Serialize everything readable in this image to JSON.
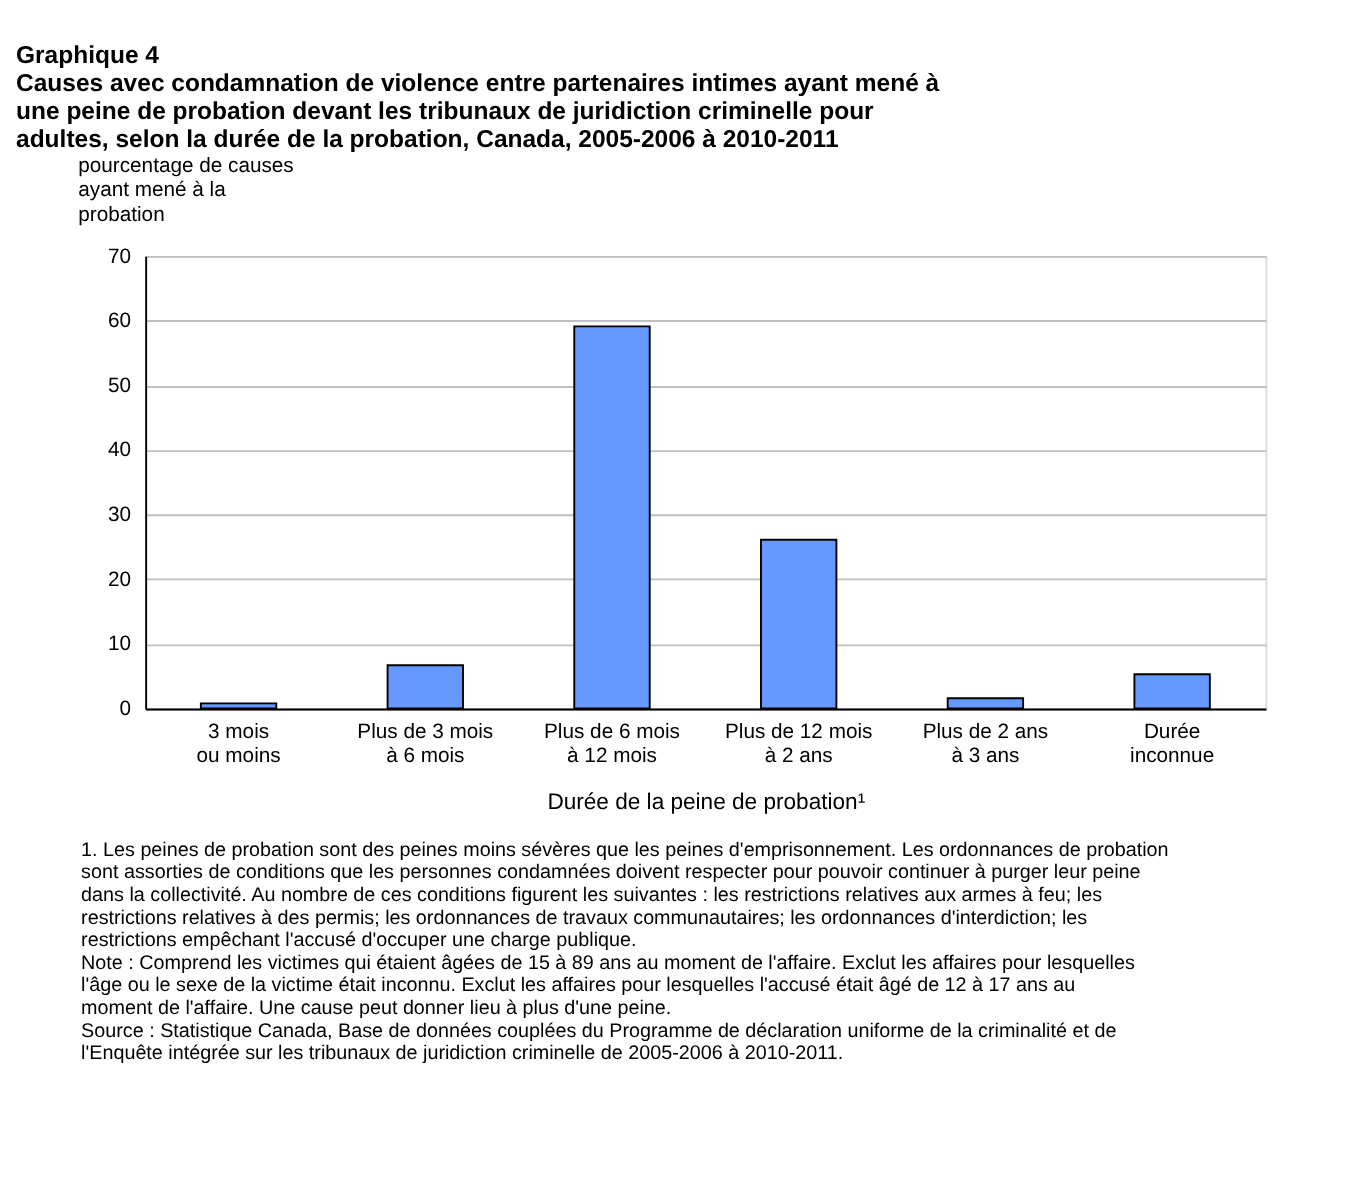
{
  "chart_data": {
    "type": "bar",
    "title": "Graphique 4",
    "subtitle": "Causes avec condamnation de violence entre partenaires intimes ayant mené à une peine de probation devant les tribunaux de juridiction criminelle pour adultes, selon la durée de la probation, Canada, 2005-2006 à 2010-2011",
    "ylabel": "pourcentage de causes ayant mené à la probation",
    "xlabel": "Durée de la peine de probation¹",
    "categories": [
      "3 mois ou moins",
      "Plus de 3 mois à 6 mois",
      "Plus de 6 mois à 12 mois",
      "Plus de 12 mois à 2 ans",
      "Plus de 2 ans à 3 ans",
      "Durée inconnue"
    ],
    "values": [
      0.8,
      6.7,
      59.1,
      26.1,
      1.6,
      5.3
    ],
    "color": "#6699ff",
    "ylim": [
      0,
      70
    ],
    "yticks": [
      0,
      10,
      20,
      30,
      40,
      50,
      60,
      70
    ],
    "grid": "y",
    "annotations": [
      "1. Les peines de probation sont des peines moins sévères que les peines d'emprisonnement. Les ordonnances de probation sont assorties de conditions que les personnes condamnées doivent respecter pour pouvoir continuer à purger leur peine dans la collectivité. Au nombre de ces conditions figurent les suivantes : les restrictions relatives aux armes à feu; les restrictions relatives à des permis; les ordonnances de travaux communautaires; les ordonnances d'interdiction; les restrictions empêchant l'accusé d'occuper une charge publique.",
      "Note : Comprend les victimes qui étaient âgées de 15 à 89 ans au moment de l'affaire. Exclut les affaires pour lesquelles l'âge ou le sexe de la victime était inconnu. Exclut les affaires pour lesquelles l'accusé était âgé de 12 à 17 ans au moment de l'affaire. Une cause peut donner lieu à plus d'une peine.",
      "Source : Statistique Canada, Base de données couplées du Programme de déclaration uniforme de la criminalité et de l'Enquête intégrée sur les tribunaux de juridiction criminelle de 2005-2006 à 2010-2011."
    ]
  }
}
